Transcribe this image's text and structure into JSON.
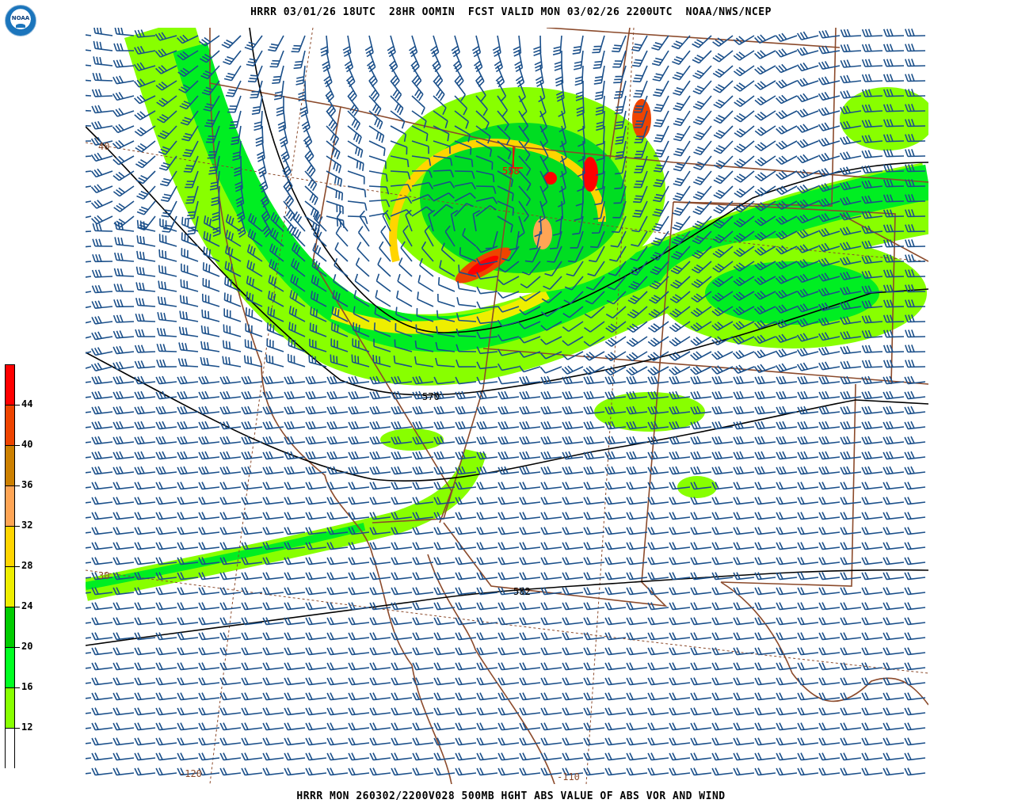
{
  "header": {
    "title": "HRRR 03/01/26 18UTC  28HR OOMIN  FCST VALID MON 03/02/26 2200UTC  NOAA/NWS/NCEP"
  },
  "footer": {
    "caption": "HRRR MON 260302/2200V028 500MB HGHT ABS VALUE OF ABS VOR AND WIND"
  },
  "logo": {
    "text": "NOAA"
  },
  "colorbar": {
    "labels": [
      "44",
      "40",
      "36",
      "32",
      "28",
      "24",
      "20",
      "16",
      "12"
    ],
    "colors": [
      "#ff0000",
      "#ee4400",
      "#cc8000",
      "#ffa555",
      "#ffd500",
      "#eeee00",
      "#00cc00",
      "#00ff22",
      "#88ff00",
      "#ffffff"
    ]
  },
  "map": {
    "height_contour_labels": [
      "558",
      "570",
      "582"
    ],
    "lat_labels": [
      "40",
      "30"
    ],
    "lon_labels": [
      "-120",
      "-110"
    ],
    "colors": {
      "barb": "#1a4f8a",
      "border": "#8b4a2b",
      "contour": "#000000",
      "low_contour_label": "#ff0000"
    }
  }
}
